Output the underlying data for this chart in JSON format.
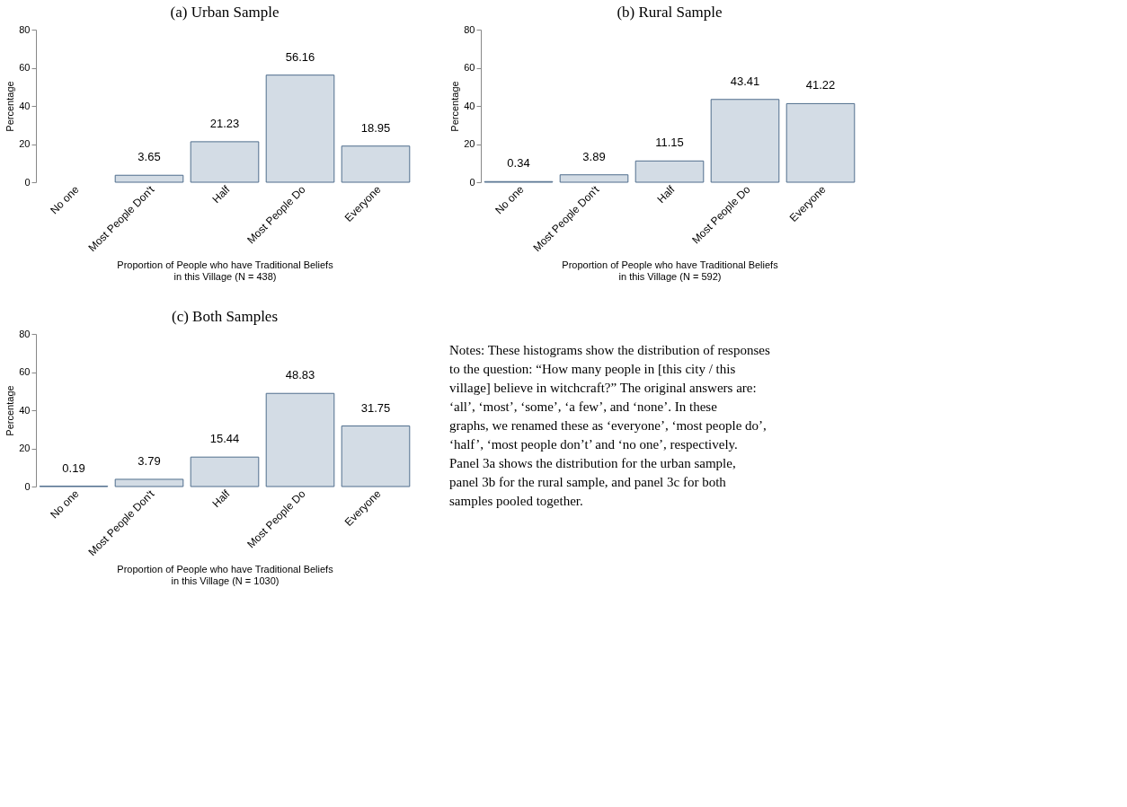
{
  "chart_data": [
    {
      "type": "bar",
      "title": "(a) Urban Sample",
      "xlabel": "Proportion of People who have Traditional Beliefs\nin this Village (N = 438)",
      "ylabel": "Percentage",
      "categories": [
        "No one",
        "Most People Don't",
        "Half",
        "Most People Do",
        "Everyone"
      ],
      "series": [
        {
          "color": "#d3dce5",
          "values": [
            null,
            3.65,
            21.23,
            56.16,
            18.95
          ]
        }
      ],
      "ylim": [
        0,
        80
      ],
      "yticks": [
        0,
        20,
        40,
        60,
        80
      ],
      "grid": false,
      "data_labels": true
    },
    {
      "type": "bar",
      "title": "(b) Rural Sample",
      "xlabel": "Proportion of People who have Traditional Beliefs\nin this Village (N = 592)",
      "ylabel": "Percentage",
      "categories": [
        "No one",
        "Most People Don't",
        "Half",
        "Most People Do",
        "Everyone"
      ],
      "series": [
        {
          "color": "#d3dce5",
          "values": [
            0.34,
            3.89,
            11.15,
            43.41,
            41.22
          ]
        }
      ],
      "ylim": [
        0,
        80
      ],
      "yticks": [
        0,
        20,
        40,
        60,
        80
      ],
      "grid": false,
      "data_labels": true
    },
    {
      "type": "bar",
      "title": "(c) Both Samples",
      "xlabel": "Proportion of People who have Traditional Beliefs\nin this Village (N = 1030)",
      "ylabel": "Percentage",
      "categories": [
        "No one",
        "Most People Don't",
        "Half",
        "Most People Do",
        "Everyone"
      ],
      "series": [
        {
          "color": "#d3dce5",
          "values": [
            0.19,
            3.79,
            15.44,
            48.83,
            31.75
          ]
        }
      ],
      "ylim": [
        0,
        80
      ],
      "yticks": [
        0,
        20,
        40,
        60,
        80
      ],
      "grid": false,
      "data_labels": true
    },
    {
      "type": "other",
      "annotations": [
        "Notes: These histograms show the distribution of responses to the question: “How many people in [this city / this village] believe in witchcraft?” The original answers are: ‘all’, ‘most’, ‘some’, ‘a few’, and ‘none’. In these graphs, we renamed these as ‘everyone’, ‘most people do’, ‘half’, ‘most people don’t’ and ‘no one’, respectively. Panel 3a shows the distribution for the urban sample, panel 3b for the rural sample, and panel 3c for both samples pooled together."
      ]
    }
  ]
}
